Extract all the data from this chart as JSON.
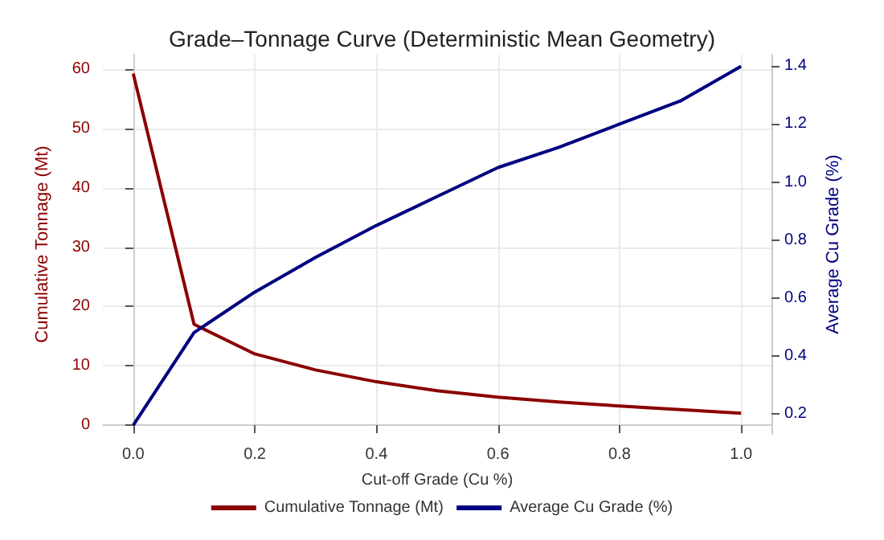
{
  "chart_data": {
    "type": "line",
    "title": "Grade–Tonnage Curve (Deterministic Mean Geometry)",
    "xlabel": "Cut-off Grade (Cu %)",
    "ylabel": "Cumulative Tonnage (Mt)",
    "y2label": "Average Cu Grade (%)",
    "x": [
      0,
      0.1,
      0.2,
      0.3,
      0.4,
      0.5,
      0.6,
      0.7,
      0.8,
      0.9,
      1.0
    ],
    "series": [
      {
        "name": "Cumulative Tonnage (Mt)",
        "color": "#8b0000",
        "values": [
          59.3,
          17,
          12,
          9.3,
          7.3,
          5.8,
          4.7,
          3.9,
          3.2,
          2.6,
          2.0
        ]
      },
      {
        "name": "Average Cu Grade (%)",
        "color": "#000080",
        "axis": "y2",
        "values": [
          0.16,
          0.48,
          0.62,
          0.74,
          0.85,
          0.95,
          1.05,
          1.12,
          1.2,
          1.28,
          1.4
        ]
      }
    ],
    "xlim": [
      -0.05,
      1.05
    ],
    "xticks": [
      {
        "value": 0,
        "label": "0.0"
      },
      0.2,
      0.4,
      0.6,
      0.8,
      {
        "value": 1,
        "label": "1.0"
      }
    ],
    "ylim": [
      -1.5,
      62.5
    ],
    "yticks": [
      0,
      10,
      20,
      30,
      40,
      50,
      60
    ],
    "y2lim": [
      0.13,
      1.44
    ],
    "y2ticks": [
      0.2,
      0.4,
      0.6,
      0.8,
      {
        "value": 1,
        "label": "1.0"
      },
      1.2,
      1.4
    ],
    "grid": true,
    "legend": "bottom",
    "marker": "none",
    "line_style": "solid"
  }
}
